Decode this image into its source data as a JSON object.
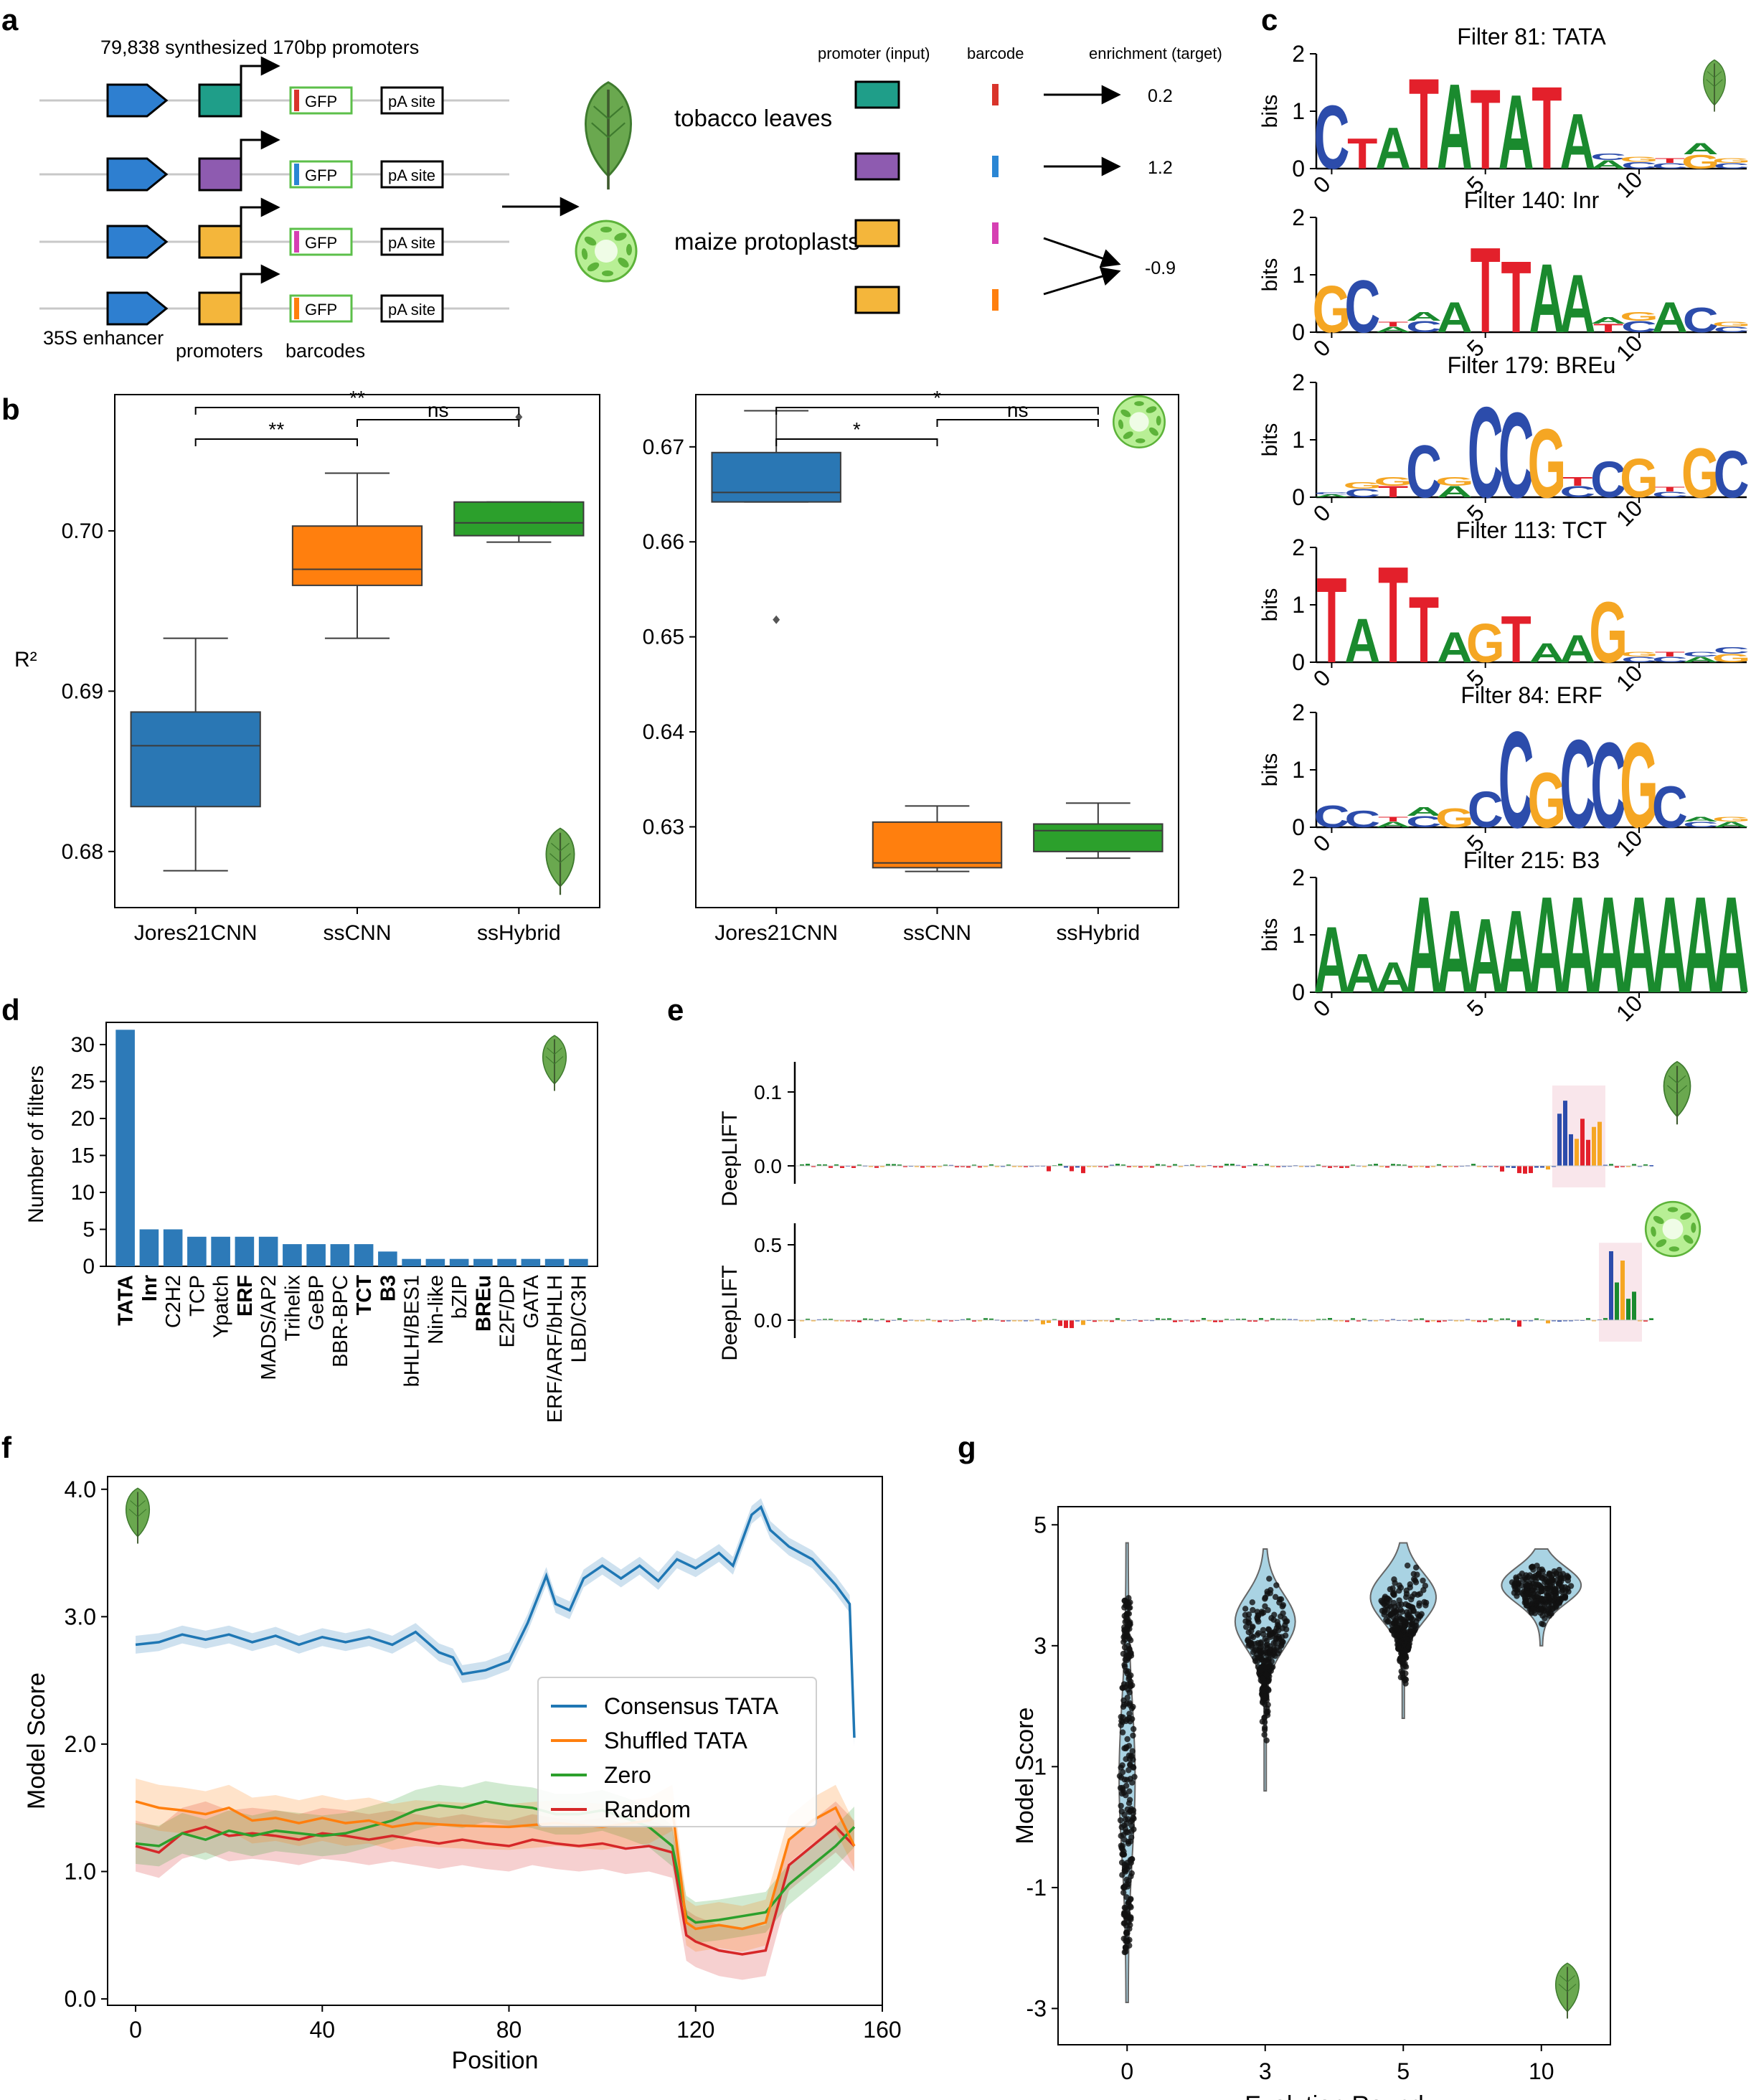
{
  "panel_labels": [
    "a",
    "b",
    "c",
    "d",
    "e",
    "f",
    "g"
  ],
  "colors": {
    "blue": "#2a77b4",
    "orange": "#ff7f0e",
    "green": "#2ca02c",
    "red": "#d62728",
    "teal": "#1f9e89",
    "purple": "#8e5bb0",
    "yellow": "#f4b63b",
    "pink": "#d63fb3",
    "bar": "#2d7ab8",
    "dna_A": "#1a8a2e",
    "dna_C": "#2c4cab",
    "dna_G": "#f5a623",
    "dna_T": "#e3202b",
    "leaf": "#6aa84f",
    "protoplast": "#9be37a",
    "violin": "#a9d3e3"
  },
  "panel_a": {
    "title": "79,838 synthesized 170bp promoters",
    "enhancer_label": "35S enhancer",
    "promoters_label": "promoters",
    "barcodes_label": "barcodes",
    "gfp_label": "GFP",
    "pa_label": "pA site",
    "tobacco_label": "tobacco leaves",
    "maize_label": "maize protoplasts",
    "col_promoter": "promoter (input)",
    "col_barcode": "barcode",
    "col_enrichment": "enrichment (target)",
    "enrichments": [
      "0.2",
      "1.2",
      "-0.9"
    ]
  },
  "chart_data": [
    {
      "type": "box",
      "panel": "b-left",
      "ylabel": "R²",
      "categories": [
        "Jores21CNN",
        "ssCNN",
        "ssHybrid"
      ],
      "ylim": [
        0.6765,
        0.7085
      ],
      "boxes": [
        {
          "min": 0.6788,
          "q1": 0.6828,
          "median": 0.6866,
          "q3": 0.6887,
          "max": 0.6933,
          "outliers": []
        },
        {
          "min": 0.6933,
          "q1": 0.6966,
          "median": 0.6976,
          "q3": 0.7003,
          "max": 0.7036,
          "outliers": []
        },
        {
          "min": 0.6993,
          "q1": 0.6997,
          "median": 0.7005,
          "q3": 0.7018,
          "max": 0.7018,
          "outliers": [
            0.7071
          ]
        }
      ],
      "significance": [
        {
          "label": "**",
          "from": 0,
          "to": 1
        },
        {
          "label": "**",
          "from": 0,
          "to": 2
        },
        {
          "label": "ns",
          "from": 1,
          "to": 2
        }
      ]
    },
    {
      "type": "box",
      "panel": "b-right",
      "categories": [
        "Jores21CNN",
        "ssCNN",
        "ssHybrid"
      ],
      "ylim": [
        0.6215,
        0.6755
      ],
      "boxes": [
        {
          "min": 0.6642,
          "q1": 0.6642,
          "median": 0.6652,
          "q3": 0.6694,
          "max": 0.6738,
          "outliers": [
            0.6518
          ]
        },
        {
          "min": 0.6253,
          "q1": 0.6257,
          "median": 0.6262,
          "q3": 0.6305,
          "max": 0.6322,
          "outliers": []
        },
        {
          "min": 0.6267,
          "q1": 0.6274,
          "median": 0.6296,
          "q3": 0.6303,
          "max": 0.6325,
          "outliers": []
        }
      ],
      "significance": [
        {
          "label": "*",
          "from": 0,
          "to": 1
        },
        {
          "label": "*",
          "from": 0,
          "to": 2
        },
        {
          "label": "ns",
          "from": 1,
          "to": 2
        }
      ]
    },
    {
      "type": "bar",
      "panel": "d",
      "ylabel": "Number of filters",
      "categories": [
        "TATA",
        "Inr",
        "C2H2",
        "TCP",
        "Ypatch",
        "ERF",
        "MADS/AP2",
        "Trihelix",
        "GeBP",
        "BBR-BPC",
        "TCT",
        "B3",
        "bHLH/BES1",
        "Nin-like",
        "bZIP",
        "BREu",
        "E2F/DP",
        "GATA",
        "ERF/ARF/bHLH",
        "LBD/C3H"
      ],
      "bold_categories": [
        "TATA",
        "Inr",
        "ERF",
        "TCT",
        "B3",
        "BREu"
      ],
      "values": [
        32,
        5,
        5,
        4,
        4,
        4,
        4,
        3,
        3,
        3,
        3,
        2,
        1,
        1,
        1,
        1,
        1,
        1,
        1,
        1
      ],
      "ylim": [
        0,
        33
      ],
      "yticks": [
        0,
        5,
        10,
        15,
        20,
        25,
        30
      ]
    },
    {
      "type": "line",
      "panel": "f",
      "xlabel": "Position",
      "ylabel": "Model Score",
      "xlim": [
        -6,
        160
      ],
      "ylim": [
        -0.05,
        4.1
      ],
      "xticks": [
        0,
        40,
        80,
        120,
        160
      ],
      "yticks": [
        "0.0",
        "1.0",
        "2.0",
        "3.0",
        "4.0"
      ],
      "legend_position": "center-right",
      "series": [
        {
          "name": "Consensus TATA",
          "color": "#1f77b4",
          "band": 0.07,
          "points": [
            [
              0,
              2.78
            ],
            [
              5,
              2.8
            ],
            [
              10,
              2.86
            ],
            [
              15,
              2.82
            ],
            [
              20,
              2.86
            ],
            [
              25,
              2.8
            ],
            [
              30,
              2.85
            ],
            [
              35,
              2.78
            ],
            [
              40,
              2.84
            ],
            [
              45,
              2.8
            ],
            [
              50,
              2.84
            ],
            [
              55,
              2.78
            ],
            [
              60,
              2.88
            ],
            [
              65,
              2.72
            ],
            [
              68,
              2.68
            ],
            [
              70,
              2.55
            ],
            [
              75,
              2.58
            ],
            [
              80,
              2.65
            ],
            [
              84,
              2.95
            ],
            [
              88,
              3.32
            ],
            [
              90,
              3.1
            ],
            [
              93,
              3.05
            ],
            [
              96,
              3.3
            ],
            [
              100,
              3.4
            ],
            [
              104,
              3.3
            ],
            [
              108,
              3.4
            ],
            [
              112,
              3.28
            ],
            [
              116,
              3.45
            ],
            [
              120,
              3.38
            ],
            [
              125,
              3.5
            ],
            [
              128,
              3.4
            ],
            [
              132,
              3.8
            ],
            [
              134,
              3.86
            ],
            [
              136,
              3.68
            ],
            [
              140,
              3.55
            ],
            [
              145,
              3.45
            ],
            [
              150,
              3.25
            ],
            [
              153,
              3.1
            ],
            [
              154,
              2.05
            ]
          ]
        },
        {
          "name": "Shuffled TATA",
          "color": "#ff7f0e",
          "band": 0.18,
          "points": [
            [
              0,
              1.55
            ],
            [
              5,
              1.5
            ],
            [
              10,
              1.48
            ],
            [
              15,
              1.45
            ],
            [
              20,
              1.5
            ],
            [
              25,
              1.4
            ],
            [
              30,
              1.42
            ],
            [
              35,
              1.38
            ],
            [
              40,
              1.42
            ],
            [
              45,
              1.38
            ],
            [
              50,
              1.4
            ],
            [
              55,
              1.35
            ],
            [
              60,
              1.38
            ],
            [
              70,
              1.36
            ],
            [
              80,
              1.35
            ],
            [
              90,
              1.38
            ],
            [
              100,
              1.35
            ],
            [
              110,
              1.4
            ],
            [
              115,
              1.5
            ],
            [
              118,
              0.6
            ],
            [
              120,
              0.55
            ],
            [
              125,
              0.58
            ],
            [
              130,
              0.55
            ],
            [
              135,
              0.6
            ],
            [
              140,
              1.25
            ],
            [
              145,
              1.4
            ],
            [
              150,
              1.5
            ],
            [
              154,
              1.2
            ]
          ]
        },
        {
          "name": "Zero",
          "color": "#2ca02c",
          "band": 0.16,
          "points": [
            [
              0,
              1.22
            ],
            [
              5,
              1.2
            ],
            [
              10,
              1.3
            ],
            [
              15,
              1.25
            ],
            [
              20,
              1.32
            ],
            [
              25,
              1.28
            ],
            [
              30,
              1.32
            ],
            [
              35,
              1.3
            ],
            [
              40,
              1.28
            ],
            [
              45,
              1.3
            ],
            [
              50,
              1.35
            ],
            [
              55,
              1.4
            ],
            [
              60,
              1.48
            ],
            [
              65,
              1.52
            ],
            [
              70,
              1.5
            ],
            [
              75,
              1.55
            ],
            [
              80,
              1.52
            ],
            [
              85,
              1.5
            ],
            [
              90,
              1.45
            ],
            [
              95,
              1.45
            ],
            [
              100,
              1.48
            ],
            [
              105,
              1.42
            ],
            [
              110,
              1.35
            ],
            [
              115,
              1.2
            ],
            [
              118,
              0.65
            ],
            [
              120,
              0.6
            ],
            [
              125,
              0.62
            ],
            [
              130,
              0.65
            ],
            [
              135,
              0.68
            ],
            [
              140,
              0.9
            ],
            [
              145,
              1.05
            ],
            [
              150,
              1.2
            ],
            [
              154,
              1.35
            ]
          ]
        },
        {
          "name": "Random",
          "color": "#d62728",
          "band": 0.2,
          "points": [
            [
              0,
              1.2
            ],
            [
              5,
              1.15
            ],
            [
              10,
              1.3
            ],
            [
              15,
              1.35
            ],
            [
              20,
              1.28
            ],
            [
              25,
              1.3
            ],
            [
              30,
              1.28
            ],
            [
              35,
              1.25
            ],
            [
              40,
              1.3
            ],
            [
              45,
              1.28
            ],
            [
              50,
              1.25
            ],
            [
              55,
              1.28
            ],
            [
              60,
              1.25
            ],
            [
              65,
              1.22
            ],
            [
              70,
              1.25
            ],
            [
              75,
              1.22
            ],
            [
              80,
              1.2
            ],
            [
              85,
              1.25
            ],
            [
              90,
              1.22
            ],
            [
              95,
              1.2
            ],
            [
              100,
              1.22
            ],
            [
              105,
              1.18
            ],
            [
              110,
              1.2
            ],
            [
              115,
              1.15
            ],
            [
              118,
              0.5
            ],
            [
              120,
              0.45
            ],
            [
              125,
              0.38
            ],
            [
              130,
              0.35
            ],
            [
              135,
              0.38
            ],
            [
              140,
              1.05
            ],
            [
              145,
              1.2
            ],
            [
              150,
              1.35
            ],
            [
              154,
              1.2
            ]
          ]
        }
      ]
    },
    {
      "type": "violin",
      "panel": "g",
      "xlabel": "Evolution Round",
      "ylabel": "Model Score",
      "categories": [
        "0",
        "3",
        "5",
        "10"
      ],
      "ylim": [
        -3.6,
        5.3
      ],
      "yticks": [
        -3,
        -1,
        1,
        3,
        5
      ],
      "distributions": [
        {
          "min": -2.9,
          "max": 4.7,
          "center": 0.8,
          "spread": 1.25,
          "width": 0.1,
          "points_range": [
            -2.1,
            3.8
          ]
        },
        {
          "min": 0.6,
          "max": 4.6,
          "center": 3.4,
          "spread": 0.45,
          "width": 0.42,
          "points_range": [
            1.2,
            4.3
          ]
        },
        {
          "min": 1.8,
          "max": 4.7,
          "center": 3.8,
          "spread": 0.4,
          "width": 0.46,
          "points_range": [
            2.2,
            4.5
          ]
        },
        {
          "min": 3.0,
          "max": 4.6,
          "center": 4.0,
          "spread": 0.3,
          "width": 0.56,
          "points_range": [
            3.3,
            4.5
          ]
        }
      ]
    }
  ],
  "panel_c": {
    "ylabel": "bits",
    "motifs": [
      {
        "title": "Filter 81: TATA",
        "seq": [
          "C",
          "T",
          "A",
          "T",
          "A",
          "T",
          "A",
          "T",
          "A",
          "A",
          "C",
          "C",
          "G",
          "C"
        ],
        "heights": [
          1.15,
          0.55,
          0.75,
          1.65,
          1.55,
          1.45,
          1.35,
          1.5,
          1.0,
          0.15,
          0.12,
          0.1,
          0.25,
          0.1
        ]
      },
      {
        "title": "Filter 140: Inr",
        "seq": [
          "G",
          "C",
          "A",
          "C",
          "A",
          "T",
          "T",
          "A",
          "A",
          "T",
          "C",
          "A",
          "C",
          "C"
        ],
        "heights": [
          0.85,
          0.95,
          0.1,
          0.2,
          0.55,
          1.55,
          1.3,
          1.25,
          1.05,
          0.15,
          0.2,
          0.55,
          0.45,
          0.1
        ]
      },
      {
        "title": "Filter 179: BREu",
        "seq": [
          "A",
          "C",
          "T",
          "C",
          "A",
          "C",
          "C",
          "G",
          "C",
          "C",
          "G",
          "C",
          "G",
          "C"
        ],
        "heights": [
          0.05,
          0.15,
          0.2,
          0.95,
          0.2,
          1.65,
          1.55,
          1.25,
          0.2,
          0.65,
          0.7,
          0.1,
          0.9,
          0.85
        ]
      },
      {
        "title": "Filter 113: TCT",
        "seq": [
          "T",
          "A",
          "T",
          "T",
          "A",
          "G",
          "T",
          "A",
          "A",
          "G",
          "C",
          "C",
          "A",
          "G"
        ],
        "heights": [
          1.55,
          0.8,
          1.75,
          1.2,
          0.55,
          0.7,
          0.85,
          0.35,
          0.5,
          1.1,
          0.1,
          0.1,
          0.1,
          0.15
        ]
      },
      {
        "title": "Filter 84: ERF",
        "seq": [
          "C",
          "C",
          "A",
          "C",
          "G",
          "C",
          "C",
          "G",
          "C",
          "C",
          "G",
          "C",
          "C",
          "A"
        ],
        "heights": [
          0.4,
          0.3,
          0.1,
          0.2,
          0.35,
          0.65,
          1.75,
          1.0,
          1.6,
          1.55,
          1.55,
          0.75,
          0.1,
          0.1
        ]
      },
      {
        "title": "Filter 215: B3",
        "seq": [
          "A",
          "A",
          "A",
          "A",
          "A",
          "A",
          "A",
          "A",
          "A",
          "A",
          "A",
          "A",
          "A",
          "A"
        ],
        "heights": [
          1.2,
          0.7,
          0.55,
          1.75,
          1.5,
          1.35,
          1.5,
          1.75,
          1.75,
          1.75,
          1.75,
          1.75,
          1.75,
          1.75
        ]
      }
    ]
  },
  "panel_e": {
    "ylabel": "DeepLIFT",
    "top_ticks": [
      "0.1",
      "0.0"
    ],
    "bottom_ticks": [
      "0.5",
      "0.0"
    ]
  }
}
